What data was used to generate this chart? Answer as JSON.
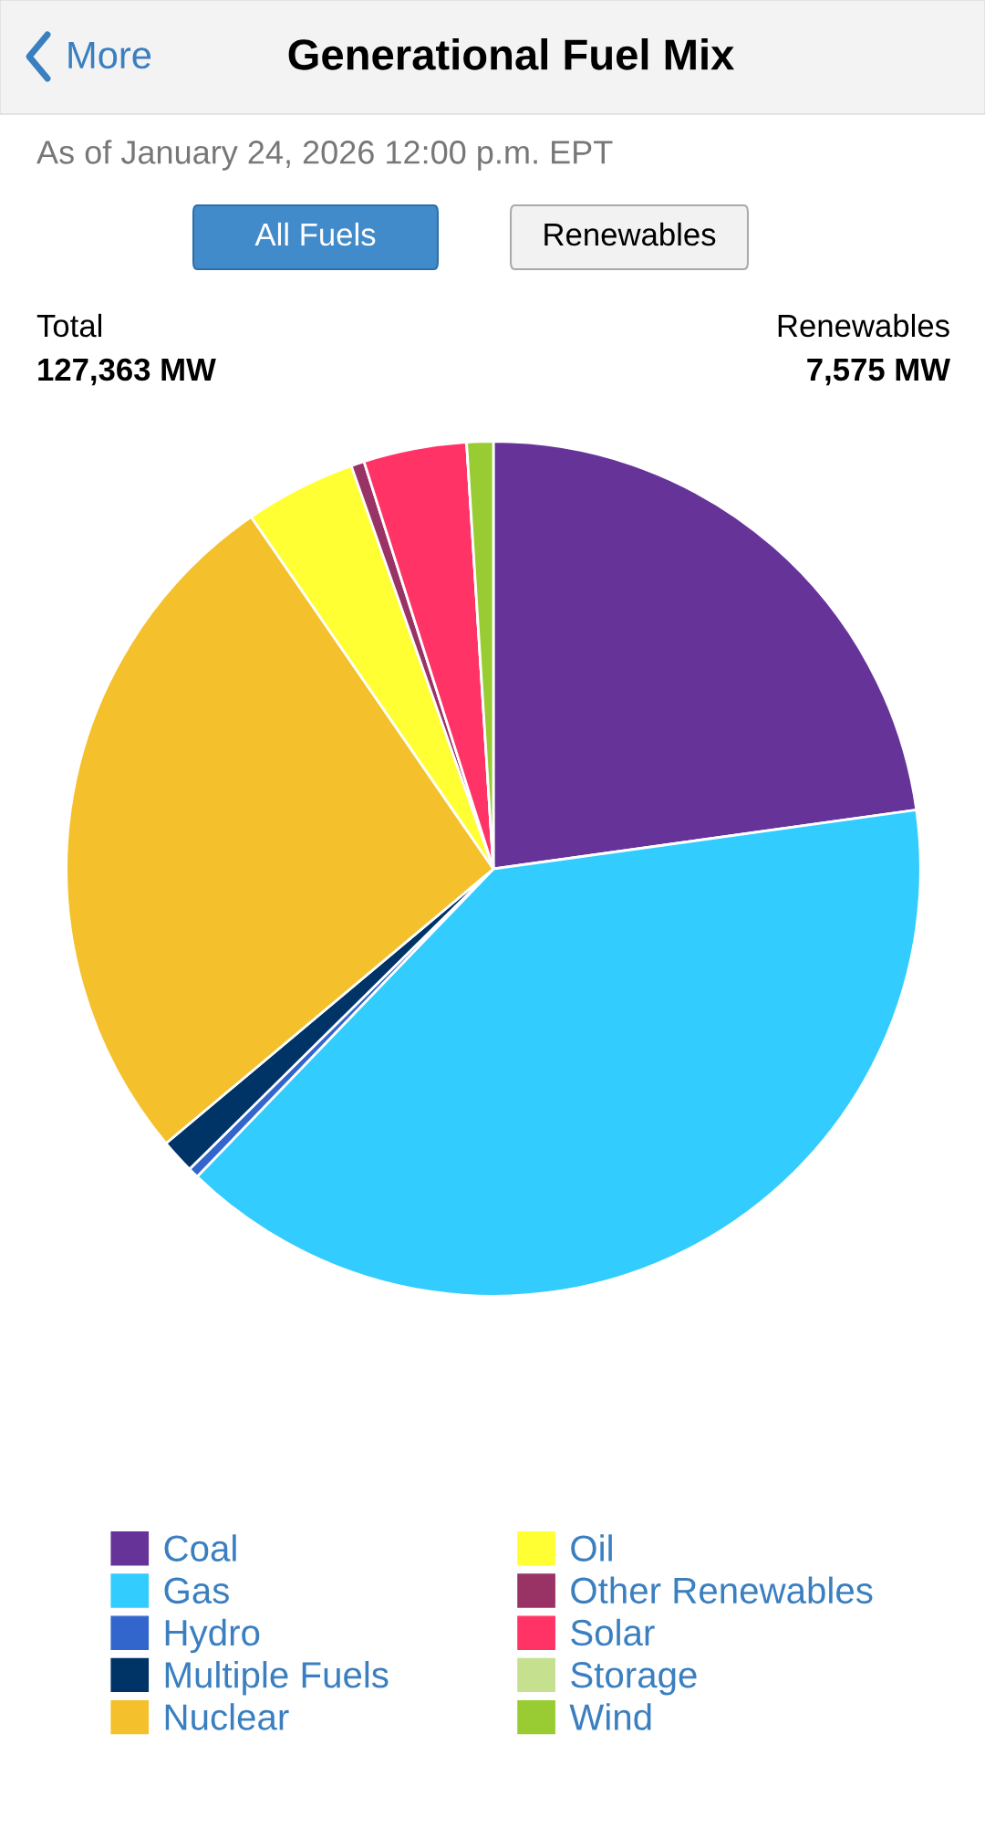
{
  "chart_data": {
    "type": "pie",
    "title": "Generational Fuel Mix",
    "categories": [
      "Coal",
      "Gas",
      "Hydro",
      "Multiple Fuels",
      "Nuclear",
      "Oil",
      "Other Renewables",
      "Solar",
      "Storage",
      "Wind"
    ],
    "values": [
      22.8,
      39.4,
      0.4,
      1.3,
      26.5,
      4.2,
      0.5,
      3.9,
      0,
      1.0
    ],
    "colors": [
      "#663399",
      "#33ccff",
      "#3366cc",
      "#003366",
      "#f4c02c",
      "#ffff33",
      "#993366",
      "#ff3366",
      "#c5e08f",
      "#99cc33"
    ],
    "legend": "bottom",
    "annotations": [
      "More",
      "As of January 24, 2026 12:00 p.m. EPT",
      "All Fuels",
      "Renewables",
      "Total",
      "127,363 MW",
      "Renewables",
      "7,575 MW"
    ]
  }
}
